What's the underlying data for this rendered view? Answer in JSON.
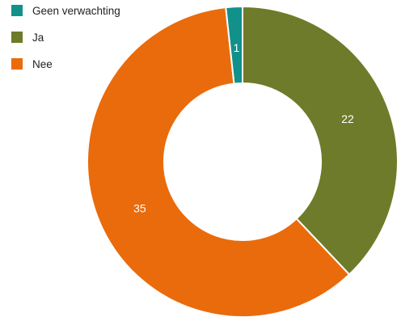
{
  "chart_data": {
    "type": "pie",
    "donut": true,
    "title": "",
    "legend_position": "top-left",
    "slices": [
      {
        "label": "Ja",
        "value": 22,
        "color": "#6e7b2a"
      },
      {
        "label": "Nee",
        "value": 35,
        "color": "#ea6b0b"
      },
      {
        "label": "Geen verwachting",
        "value": 1,
        "color": "#12918a"
      }
    ],
    "legend": [
      "Geen verwachting",
      "Ja",
      "Nee"
    ]
  }
}
